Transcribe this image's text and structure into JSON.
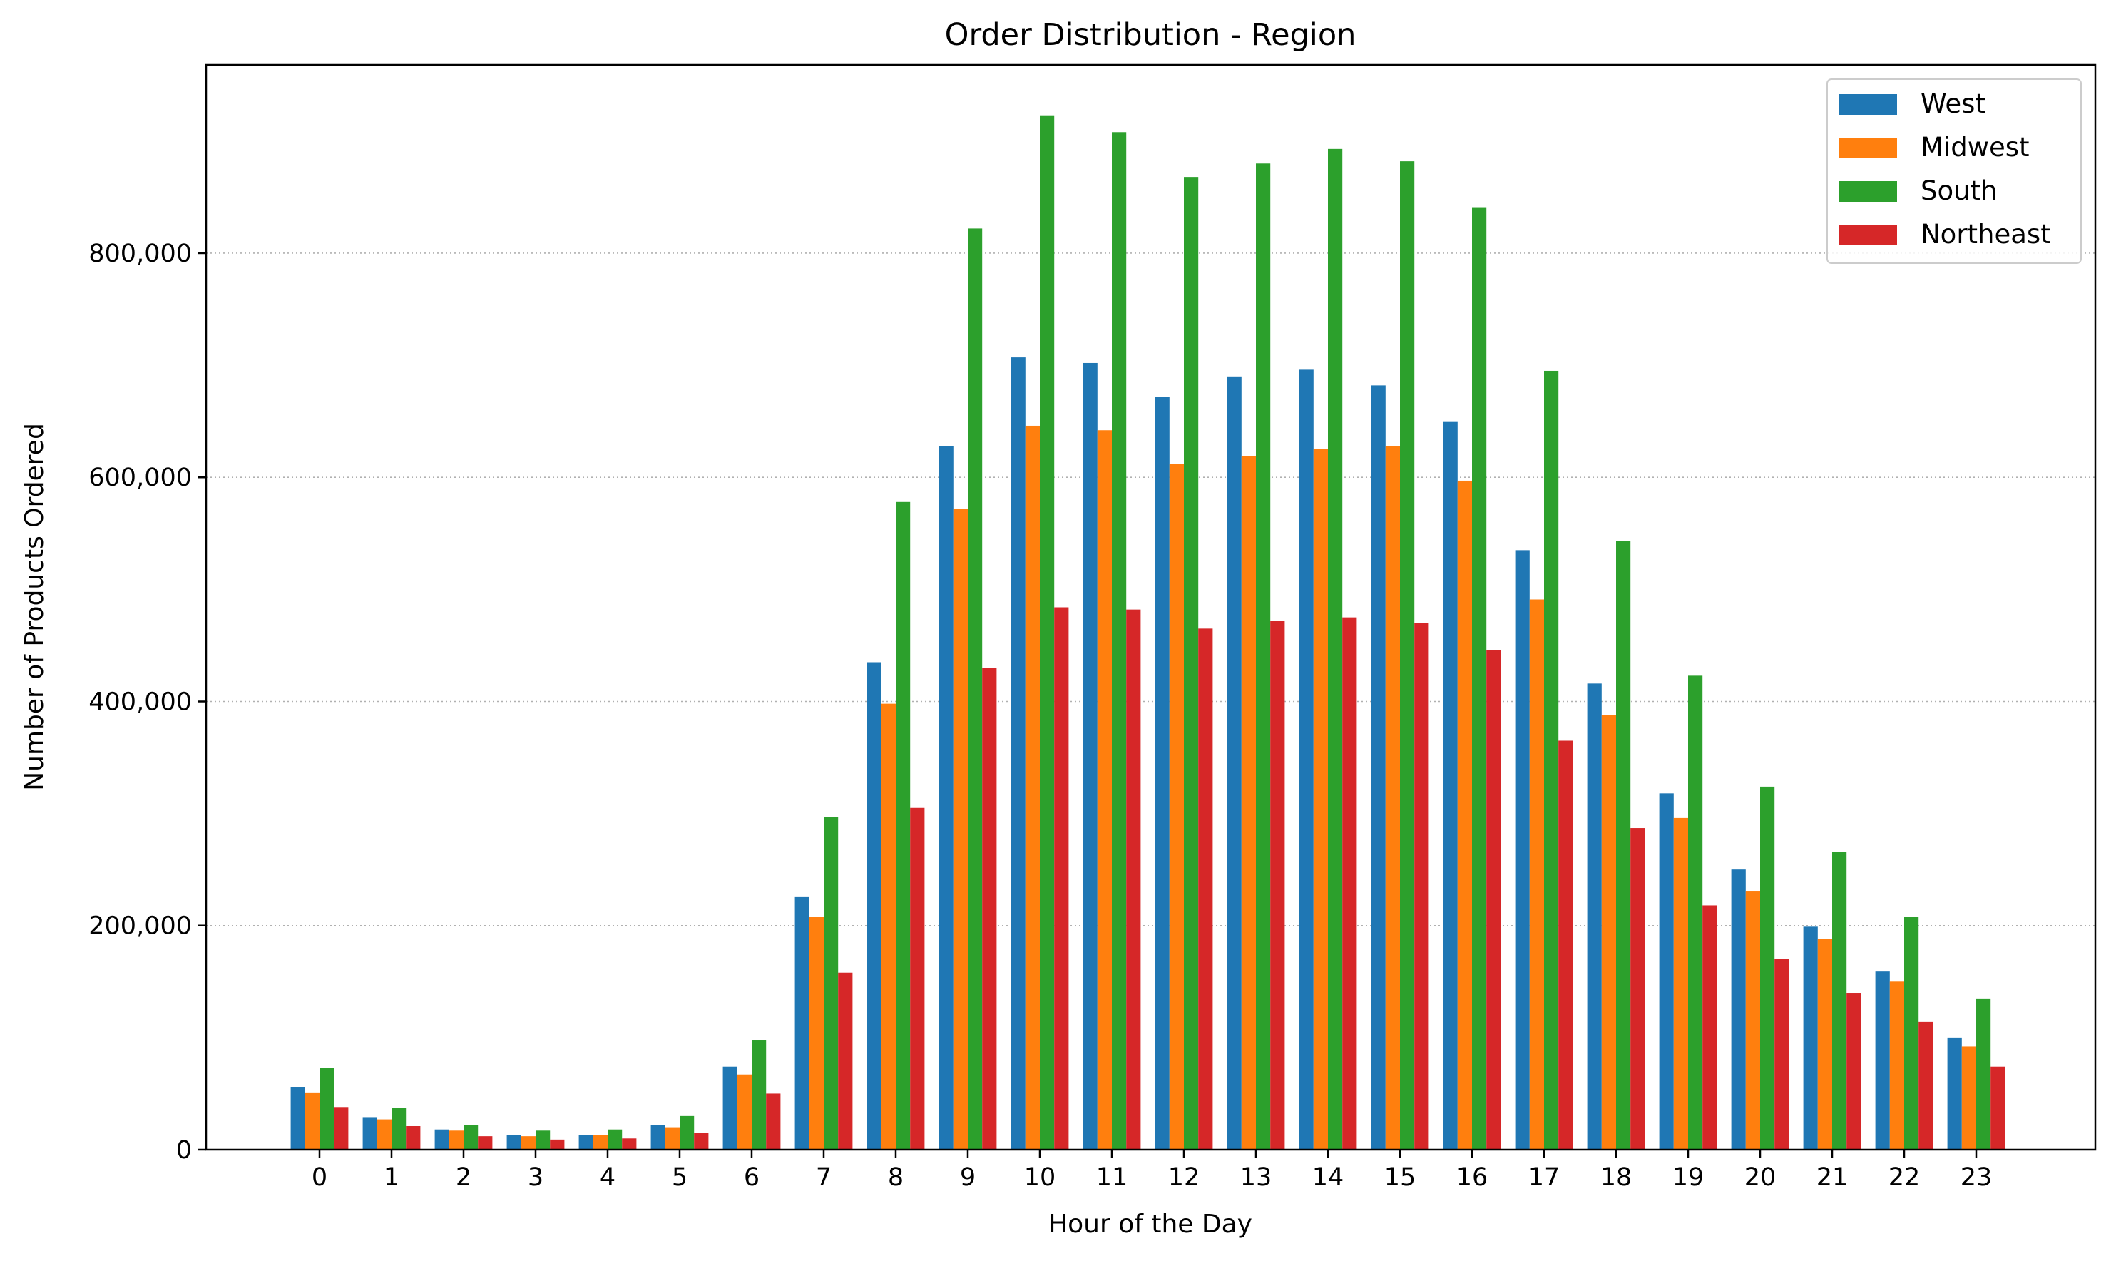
{
  "chart_data": {
    "type": "bar",
    "title": "Order Distribution - Region",
    "xlabel": "Hour of the Day",
    "ylabel": "Number of Products Ordered",
    "categories": [
      "0",
      "1",
      "2",
      "3",
      "4",
      "5",
      "6",
      "7",
      "8",
      "9",
      "10",
      "11",
      "12",
      "13",
      "14",
      "15",
      "16",
      "17",
      "18",
      "19",
      "20",
      "21",
      "22",
      "23"
    ],
    "ylim": [
      0,
      968000
    ],
    "yticks": [
      0,
      200000,
      400000,
      600000,
      800000
    ],
    "ytick_labels": [
      "0",
      "200,000",
      "400,000",
      "600,000",
      "800,000"
    ],
    "grid": "y-dotted",
    "legend_position": "top-right",
    "series": [
      {
        "name": "West",
        "color": "#1f77b4",
        "values": [
          56000,
          29000,
          18000,
          13000,
          13000,
          22000,
          74000,
          226000,
          435000,
          628000,
          707000,
          702000,
          672000,
          690000,
          696000,
          682000,
          650000,
          535000,
          416000,
          318000,
          250000,
          199000,
          159000,
          100000
        ]
      },
      {
        "name": "Midwest",
        "color": "#ff7f0e",
        "values": [
          51000,
          27000,
          17000,
          12000,
          13000,
          20000,
          67000,
          208000,
          398000,
          572000,
          646000,
          642000,
          612000,
          619000,
          625000,
          628000,
          597000,
          491000,
          388000,
          296000,
          231000,
          188000,
          150000,
          92000
        ]
      },
      {
        "name": "South",
        "color": "#2ca02c",
        "values": [
          73000,
          37000,
          22000,
          17000,
          18000,
          30000,
          98000,
          297000,
          578000,
          822000,
          923000,
          908000,
          868000,
          880000,
          893000,
          882000,
          841000,
          695000,
          543000,
          423000,
          324000,
          266000,
          208000,
          135000
        ]
      },
      {
        "name": "Northeast",
        "color": "#d62728",
        "values": [
          38000,
          21000,
          12000,
          9000,
          10000,
          15000,
          50000,
          158000,
          305000,
          430000,
          484000,
          482000,
          465000,
          472000,
          475000,
          470000,
          446000,
          365000,
          287000,
          218000,
          170000,
          140000,
          114000,
          74000
        ]
      }
    ]
  }
}
